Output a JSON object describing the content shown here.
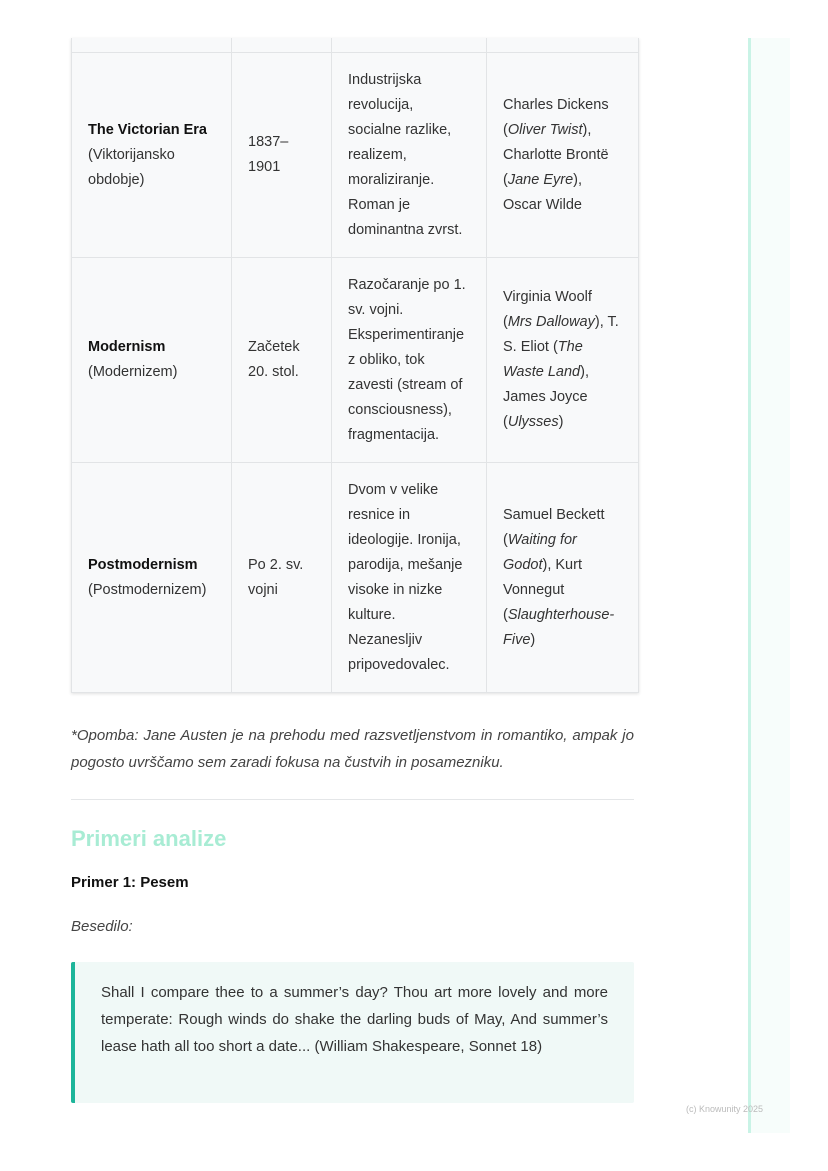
{
  "table": {
    "rows": [
      {
        "name": "The Victorian Era",
        "alt": "(Viktorijansko obdobje)",
        "period": "1837–1901",
        "features": "Industrijska revolucija, socialne razlike, realizem, moraliziranje. Roman je dominantna zvrst.",
        "authors": [
          {
            "t": "Charles Dickens ("
          },
          {
            "i": "Oliver Twist"
          },
          {
            "t": "), Charlotte Brontë ("
          },
          {
            "i": "Jane Eyre"
          },
          {
            "t": "), Oscar Wilde"
          }
        ]
      },
      {
        "name": "Modernism",
        "alt": "(Modernizem)",
        "period": "Začetek 20. stol.",
        "features": "Razočaranje po 1. sv. vojni. Eksperimentiranje z obliko, tok zavesti (stream of consciousness), fragmentacija.",
        "authors": [
          {
            "t": "Virginia Woolf ("
          },
          {
            "i": "Mrs Dalloway"
          },
          {
            "t": "), T. S. Eliot ("
          },
          {
            "i": "The Waste Land"
          },
          {
            "t": "), James Joyce ("
          },
          {
            "i": "Ulysses"
          },
          {
            "t": ")"
          }
        ]
      },
      {
        "name": "Postmodernism",
        "alt": "(Postmodernizem)",
        "period": "Po 2. sv. vojni",
        "features": "Dvom v velike resnice in ideologije. Ironija, parodija, mešanje visoke in nizke kulture. Nezanesljiv pripovedovalec.",
        "authors": [
          {
            "t": "Samuel Beckett ("
          },
          {
            "i": "Waiting for Godot"
          },
          {
            "t": "), Kurt Vonnegut ("
          },
          {
            "i": "Slaughterhouse-Five"
          },
          {
            "t": ")"
          }
        ]
      }
    ]
  },
  "note": "*Opomba: Jane Austen je na prehodu med razsvetljenstvom in romantiko, ampak jo pogosto uvrščamo sem zaradi fokusa na čustvih in posamezniku.",
  "section": {
    "heading": "Primeri analize",
    "example_title": "Primer 1: Pesem",
    "text_label": "Besedilo:",
    "quote": "Shall I compare thee to a summer’s day? Thou art more lovely and more temperate: Rough winds do shake the darling buds of May, And summer’s lease hath all too short a date... (William Shakespeare, Sonnet 18)"
  },
  "footer": {
    "copyright": "(c) Knowunity 2025"
  },
  "colors": {
    "accent": "#1db59a",
    "heading": "#a8ecd4"
  }
}
